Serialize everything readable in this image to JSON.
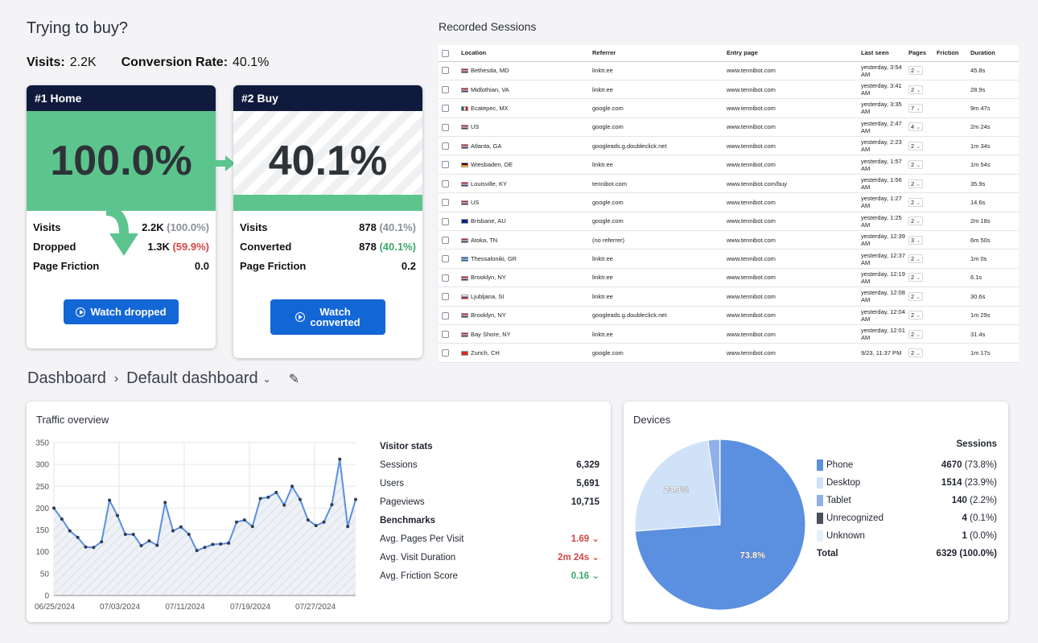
{
  "funnel": {
    "title": "Trying to buy?",
    "visits_label": "Visits:",
    "visits_value": "2.2K",
    "conversion_label": "Conversion Rate:",
    "conversion_value": "40.1%",
    "steps": [
      {
        "header": "#1  Home",
        "percent": "100.0%",
        "fill_fraction": 1.0,
        "rows": [
          {
            "label": "Visits",
            "value": "2.2K",
            "paren": "(100.0%)"
          },
          {
            "label": "Dropped",
            "value": "1.3K",
            "paren": "(59.9%)"
          },
          {
            "label": "Page Friction",
            "value": "0.0",
            "paren": ""
          }
        ],
        "button": "Watch dropped"
      },
      {
        "header": "#2  Buy",
        "percent": "40.1%",
        "fill_fraction": 0.401,
        "rows": [
          {
            "label": "Visits",
            "value": "878",
            "paren": "(40.1%)"
          },
          {
            "label": "Converted",
            "value": "878",
            "paren": "(40.1%)"
          },
          {
            "label": "Page Friction",
            "value": "0.2",
            "paren": ""
          }
        ],
        "button": "Watch converted"
      }
    ]
  },
  "sessions": {
    "title": "Recorded Sessions",
    "columns": [
      "Location",
      "Referrer",
      "Entry page",
      "Last seen",
      "Pages",
      "Friction",
      "Duration"
    ],
    "rows": [
      {
        "location": "Bethesda, MD",
        "flag": "us",
        "referrer": "linktr.ee",
        "entry": "www.tennibot.com",
        "last_seen": "yesterday, 3:54 AM",
        "pages": "2",
        "duration": "45.8s"
      },
      {
        "location": "Midlothian, VA",
        "flag": "us",
        "referrer": "linktr.ee",
        "entry": "www.tennibot.com",
        "last_seen": "yesterday, 3:41 AM",
        "pages": "2",
        "duration": "28.9s"
      },
      {
        "location": "Ecatepec, MX",
        "flag": "mx",
        "referrer": "google.com",
        "entry": "www.tennibot.com",
        "last_seen": "yesterday, 3:35 AM",
        "pages": "7",
        "duration": "9m 47s"
      },
      {
        "location": "US",
        "flag": "us",
        "referrer": "google.com",
        "entry": "www.tennibot.com",
        "last_seen": "yesterday, 2:47 AM",
        "pages": "4",
        "duration": "2m 24s"
      },
      {
        "location": "Atlanta, GA",
        "flag": "us",
        "referrer": "googleads.g.doubleclick.net",
        "entry": "www.tennibot.com",
        "last_seen": "yesterday, 2:23 AM",
        "pages": "2",
        "duration": "1m 34s"
      },
      {
        "location": "Wiesbaden, DE",
        "flag": "de",
        "referrer": "linktr.ee",
        "entry": "www.tennibot.com",
        "last_seen": "yesterday, 1:57 AM",
        "pages": "2",
        "duration": "1m 54s"
      },
      {
        "location": "Louisville, KY",
        "flag": "us",
        "referrer": "tennibot.com",
        "entry": "www.tennibot.com/buy",
        "last_seen": "yesterday, 1:56 AM",
        "pages": "2",
        "duration": "35.9s"
      },
      {
        "location": "US",
        "flag": "us",
        "referrer": "google.com",
        "entry": "www.tennibot.com",
        "last_seen": "yesterday, 1:27 AM",
        "pages": "2",
        "duration": "14.6s"
      },
      {
        "location": "Brisbane, AU",
        "flag": "au",
        "referrer": "google.com",
        "entry": "www.tennibot.com",
        "last_seen": "yesterday, 1:25 AM",
        "pages": "2",
        "duration": "2m 18s"
      },
      {
        "location": "Atoka, TN",
        "flag": "us",
        "referrer": "(no referrer)",
        "entry": "www.tennibot.com",
        "last_seen": "yesterday, 12:39 AM",
        "pages": "3",
        "duration": "6m 50s"
      },
      {
        "location": "Thessaloniki, GR",
        "flag": "gr",
        "referrer": "linktr.ee",
        "entry": "www.tennibot.com",
        "last_seen": "yesterday, 12:37 AM",
        "pages": "2",
        "duration": "1m 0s"
      },
      {
        "location": "Brooklyn, NY",
        "flag": "us",
        "referrer": "linktr.ee",
        "entry": "www.tennibot.com",
        "last_seen": "yesterday, 12:19 AM",
        "pages": "2",
        "duration": "6.1s"
      },
      {
        "location": "Ljubljana, SI",
        "flag": "si",
        "referrer": "linktr.ee",
        "entry": "www.tennibot.com",
        "last_seen": "yesterday, 12:08 AM",
        "pages": "2",
        "duration": "30.6s"
      },
      {
        "location": "Brooklyn, NY",
        "flag": "us",
        "referrer": "googleads.g.doubleclick.net",
        "entry": "www.tennibot.com",
        "last_seen": "yesterday, 12:04 AM",
        "pages": "2",
        "duration": "1m 29s"
      },
      {
        "location": "Bay Shore, NY",
        "flag": "us",
        "referrer": "linktr.ee",
        "entry": "www.tennibot.com",
        "last_seen": "yesterday, 12:01 AM",
        "pages": "2",
        "duration": "31.4s"
      },
      {
        "location": "Zurich, CH",
        "flag": "ch",
        "referrer": "google.com",
        "entry": "www.tennibot.com",
        "last_seen": "9/23, 11:37 PM",
        "pages": "2",
        "duration": "1m 17s"
      }
    ]
  },
  "dashboard": {
    "breadcrumb_root": "Dashboard",
    "breadcrumb_current": "Default dashboard"
  },
  "traffic": {
    "title": "Traffic overview",
    "visitor_stats_label": "Visitor stats",
    "stats": [
      {
        "label": "Sessions",
        "value": "6,329"
      },
      {
        "label": "Users",
        "value": "5,691"
      },
      {
        "label": "Pageviews",
        "value": "10,715"
      }
    ],
    "benchmarks_label": "Benchmarks",
    "benchmarks": [
      {
        "label": "Avg. Pages Per Visit",
        "value": "1.69",
        "trend": "down",
        "color": "#d64545"
      },
      {
        "label": "Avg. Visit Duration",
        "value": "2m 24s",
        "trend": "down",
        "color": "#d64545"
      },
      {
        "label": "Avg. Friction Score",
        "value": "0.16",
        "trend": "down",
        "color": "#3ba86b"
      }
    ]
  },
  "chart_data": {
    "type": "line",
    "series": [
      {
        "values": [
          200,
          175,
          148,
          133,
          111,
          110,
          123,
          218,
          183,
          140,
          140,
          114,
          125,
          115,
          213,
          148,
          157,
          140,
          103,
          110,
          117,
          118,
          120,
          168,
          173,
          158,
          222,
          225,
          236,
          207,
          250,
          220,
          173,
          160,
          168,
          208,
          312,
          158,
          220
        ]
      }
    ],
    "x_tick_labels": [
      "06/25/2024",
      "07/03/2024",
      "07/11/2024",
      "07/19/2024",
      "07/27/2024"
    ],
    "ylim": [
      0,
      350
    ],
    "y_ticks": [
      0,
      50,
      100,
      150,
      200,
      250,
      300,
      350
    ],
    "grid": true,
    "line_color": "#5b8fe0"
  },
  "devices": {
    "title": "Devices",
    "sessions_label": "Sessions",
    "items": [
      {
        "label": "Phone",
        "count": "4670",
        "pct": "(73.8%)",
        "value": 4670,
        "color": "#5b8fe0"
      },
      {
        "label": "Desktop",
        "count": "1514",
        "pct": "(23.9%)",
        "value": 1514,
        "color": "#cfe2f8"
      },
      {
        "label": "Tablet",
        "count": "140",
        "pct": "(2.2%)",
        "value": 140,
        "color": "#8fb0ea"
      },
      {
        "label": "Unrecognized",
        "count": "4",
        "pct": "(0.1%)",
        "value": 4,
        "color": "#4a505c"
      },
      {
        "label": "Unknown",
        "count": "1",
        "pct": "(0.0%)",
        "value": 1,
        "color": "#e6f0fb"
      }
    ],
    "total_label": "Total",
    "total_value": "6329 (100.0%)",
    "pie_labels": [
      "73.8%",
      "23.9%"
    ]
  }
}
